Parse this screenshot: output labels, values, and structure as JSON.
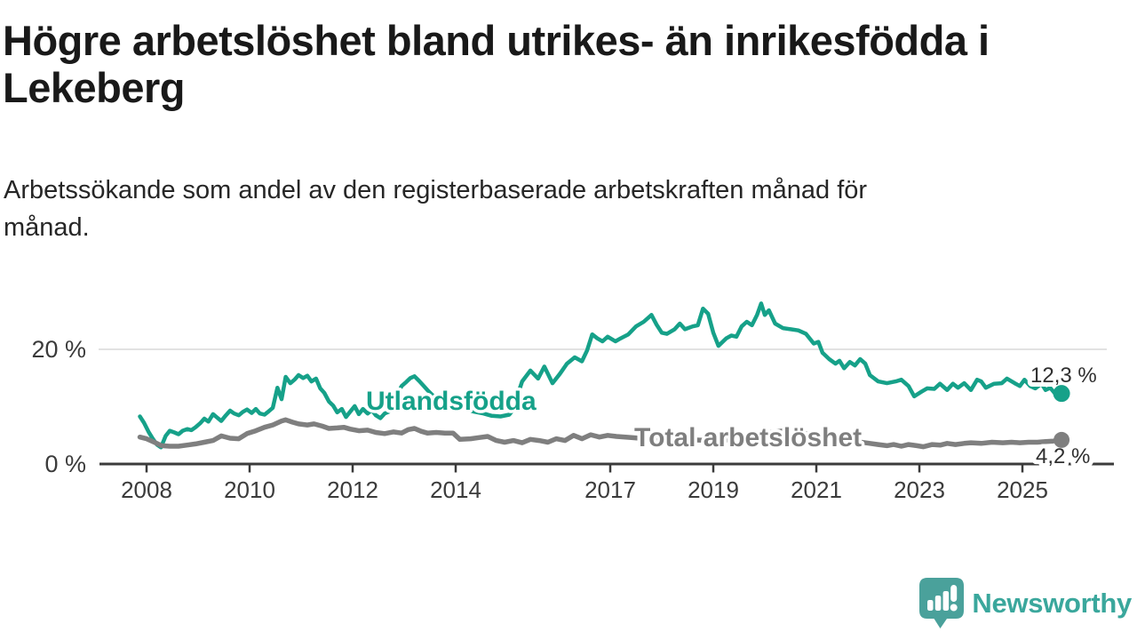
{
  "chart_data": {
    "type": "line",
    "title": "Högre arbetslöshet bland utrikes- än inrikesfödda i Lekeberg",
    "subtitle": "Arbetssökande som andel av den registerbaserade arbetskraften månad för månad.",
    "unit": "%",
    "grid": "horizontal-only",
    "legend_position": "inline-labels-on-lines",
    "x_axis": {
      "range": [
        2007.87,
        2026.6
      ],
      "ticks": [
        {
          "year": 2008,
          "label": "2008"
        },
        {
          "year": 2010,
          "label": "2010"
        },
        {
          "year": 2012,
          "label": "2012"
        },
        {
          "year": 2014,
          "label": "2014"
        },
        {
          "year": 2017,
          "label": "2017"
        },
        {
          "year": 2019,
          "label": "2019"
        },
        {
          "year": 2021,
          "label": "2021"
        },
        {
          "year": 2023,
          "label": "2023"
        },
        {
          "year": 2025,
          "label": "2025"
        }
      ]
    },
    "y_axis": {
      "range": [
        0,
        30
      ],
      "ticks": [
        {
          "value": 0,
          "label": "0 %"
        },
        {
          "value": 20,
          "label": "20 %"
        }
      ],
      "gridline_values": [
        20
      ]
    },
    "series": [
      {
        "name": "Utlandsfödda",
        "color": "#16a189",
        "end_label": "12,3 %",
        "end_value": 12.3,
        "points": [
          [
            2007.87,
            8.3
          ],
          [
            2007.95,
            7.2
          ],
          [
            2008.04,
            5.6
          ],
          [
            2008.12,
            4.4
          ],
          [
            2008.2,
            3.4
          ],
          [
            2008.28,
            2.9
          ],
          [
            2008.37,
            4.9
          ],
          [
            2008.45,
            5.8
          ],
          [
            2008.54,
            5.5
          ],
          [
            2008.62,
            5.2
          ],
          [
            2008.7,
            5.8
          ],
          [
            2008.79,
            6.1
          ],
          [
            2008.87,
            5.9
          ],
          [
            2008.95,
            6.4
          ],
          [
            2009.04,
            7.1
          ],
          [
            2009.12,
            7.9
          ],
          [
            2009.2,
            7.4
          ],
          [
            2009.29,
            8.7
          ],
          [
            2009.37,
            8.1
          ],
          [
            2009.45,
            7.5
          ],
          [
            2009.54,
            8.5
          ],
          [
            2009.62,
            9.3
          ],
          [
            2009.7,
            8.8
          ],
          [
            2009.79,
            8.5
          ],
          [
            2009.87,
            9.1
          ],
          [
            2009.95,
            9.5
          ],
          [
            2010.04,
            8.9
          ],
          [
            2010.12,
            9.6
          ],
          [
            2010.2,
            8.8
          ],
          [
            2010.29,
            8.6
          ],
          [
            2010.37,
            9.2
          ],
          [
            2010.45,
            9.8
          ],
          [
            2010.54,
            13.3
          ],
          [
            2010.62,
            11.3
          ],
          [
            2010.7,
            15.2
          ],
          [
            2010.79,
            14.1
          ],
          [
            2010.87,
            14.7
          ],
          [
            2010.95,
            15.5
          ],
          [
            2011.04,
            15.0
          ],
          [
            2011.12,
            15.4
          ],
          [
            2011.2,
            14.4
          ],
          [
            2011.29,
            14.9
          ],
          [
            2011.37,
            13.2
          ],
          [
            2011.45,
            12.4
          ],
          [
            2011.54,
            10.9
          ],
          [
            2011.62,
            10.2
          ],
          [
            2011.7,
            9.0
          ],
          [
            2011.79,
            9.6
          ],
          [
            2011.87,
            8.2
          ],
          [
            2011.95,
            9.1
          ],
          [
            2012.04,
            10.1
          ],
          [
            2012.12,
            8.7
          ],
          [
            2012.2,
            9.6
          ],
          [
            2012.29,
            8.8
          ],
          [
            2012.37,
            9.4
          ],
          [
            2012.45,
            8.5
          ],
          [
            2012.54,
            8.0
          ],
          [
            2012.62,
            8.8
          ],
          [
            2012.7,
            9.1
          ],
          [
            2012.79,
            10.6
          ],
          [
            2012.87,
            12.1
          ],
          [
            2012.95,
            13.6
          ],
          [
            2013.04,
            14.3
          ],
          [
            2013.12,
            15.0
          ],
          [
            2013.2,
            15.3
          ],
          [
            2013.29,
            14.5
          ],
          [
            2013.37,
            13.7
          ],
          [
            2013.45,
            12.9
          ],
          [
            2013.54,
            12.1
          ],
          [
            2013.62,
            11.5
          ],
          [
            2013.7,
            11.1
          ],
          [
            2013.79,
            10.7
          ],
          [
            2013.87,
            10.4
          ],
          [
            2013.95,
            10.2
          ],
          [
            2014.04,
            10.0
          ],
          [
            2014.2,
            9.5
          ],
          [
            2014.37,
            9.1
          ],
          [
            2014.54,
            8.8
          ],
          [
            2014.7,
            8.4
          ],
          [
            2014.87,
            8.3
          ],
          [
            2015.04,
            8.6
          ],
          [
            2015.12,
            9.5
          ],
          [
            2015.2,
            12.0
          ],
          [
            2015.29,
            14.4
          ],
          [
            2015.45,
            16.3
          ],
          [
            2015.6,
            14.9
          ],
          [
            2015.72,
            17.0
          ],
          [
            2015.88,
            14.1
          ],
          [
            2016.02,
            15.7
          ],
          [
            2016.16,
            17.5
          ],
          [
            2016.31,
            18.6
          ],
          [
            2016.45,
            17.9
          ],
          [
            2016.55,
            19.8
          ],
          [
            2016.65,
            22.6
          ],
          [
            2016.75,
            21.9
          ],
          [
            2016.85,
            21.4
          ],
          [
            2016.95,
            22.2
          ],
          [
            2017.1,
            21.4
          ],
          [
            2017.2,
            21.9
          ],
          [
            2017.35,
            22.6
          ],
          [
            2017.5,
            24.0
          ],
          [
            2017.65,
            24.8
          ],
          [
            2017.8,
            26.0
          ],
          [
            2017.9,
            24.3
          ],
          [
            2018.0,
            22.9
          ],
          [
            2018.1,
            22.7
          ],
          [
            2018.25,
            23.5
          ],
          [
            2018.35,
            24.5
          ],
          [
            2018.45,
            23.5
          ],
          [
            2018.6,
            24.0
          ],
          [
            2018.7,
            24.2
          ],
          [
            2018.8,
            27.1
          ],
          [
            2018.9,
            26.2
          ],
          [
            2019.0,
            22.9
          ],
          [
            2019.1,
            20.6
          ],
          [
            2019.25,
            21.9
          ],
          [
            2019.35,
            22.4
          ],
          [
            2019.45,
            22.2
          ],
          [
            2019.55,
            24.0
          ],
          [
            2019.65,
            24.8
          ],
          [
            2019.75,
            24.2
          ],
          [
            2019.85,
            26.0
          ],
          [
            2019.93,
            28.0
          ],
          [
            2020.0,
            26.0
          ],
          [
            2020.08,
            26.8
          ],
          [
            2020.2,
            24.5
          ],
          [
            2020.35,
            23.7
          ],
          [
            2020.5,
            23.5
          ],
          [
            2020.65,
            23.3
          ],
          [
            2020.8,
            22.7
          ],
          [
            2020.95,
            21.0
          ],
          [
            2021.04,
            21.3
          ],
          [
            2021.12,
            19.4
          ],
          [
            2021.25,
            18.3
          ],
          [
            2021.37,
            17.5
          ],
          [
            2021.45,
            18.0
          ],
          [
            2021.54,
            16.7
          ],
          [
            2021.65,
            17.8
          ],
          [
            2021.75,
            17.2
          ],
          [
            2021.85,
            18.3
          ],
          [
            2021.95,
            17.5
          ],
          [
            2022.04,
            15.5
          ],
          [
            2022.2,
            14.4
          ],
          [
            2022.37,
            14.1
          ],
          [
            2022.54,
            14.4
          ],
          [
            2022.65,
            14.7
          ],
          [
            2022.79,
            13.6
          ],
          [
            2022.9,
            11.8
          ],
          [
            2023.04,
            12.6
          ],
          [
            2023.15,
            13.2
          ],
          [
            2023.29,
            13.1
          ],
          [
            2023.4,
            14.0
          ],
          [
            2023.54,
            12.9
          ],
          [
            2023.65,
            14.0
          ],
          [
            2023.75,
            13.3
          ],
          [
            2023.87,
            14.1
          ],
          [
            2024.0,
            12.9
          ],
          [
            2024.12,
            14.7
          ],
          [
            2024.2,
            14.4
          ],
          [
            2024.29,
            13.3
          ],
          [
            2024.45,
            14.0
          ],
          [
            2024.6,
            14.1
          ],
          [
            2024.7,
            14.9
          ],
          [
            2024.85,
            14.1
          ],
          [
            2024.95,
            13.6
          ],
          [
            2025.04,
            14.7
          ],
          [
            2025.15,
            13.6
          ],
          [
            2025.25,
            13.2
          ],
          [
            2025.37,
            14.0
          ],
          [
            2025.45,
            12.9
          ],
          [
            2025.54,
            13.3
          ],
          [
            2025.65,
            12.1
          ],
          [
            2025.76,
            12.3
          ]
        ]
      },
      {
        "name": "Total arbetslöshet",
        "color": "#7f7f7f",
        "end_label": "4,2 %",
        "end_value": 4.2,
        "points": [
          [
            2007.87,
            4.7
          ],
          [
            2008.0,
            4.4
          ],
          [
            2008.15,
            3.8
          ],
          [
            2008.29,
            3.2
          ],
          [
            2008.45,
            3.1
          ],
          [
            2008.62,
            3.1
          ],
          [
            2008.79,
            3.3
          ],
          [
            2008.95,
            3.5
          ],
          [
            2009.12,
            3.8
          ],
          [
            2009.29,
            4.1
          ],
          [
            2009.45,
            4.9
          ],
          [
            2009.62,
            4.5
          ],
          [
            2009.79,
            4.4
          ],
          [
            2009.95,
            5.3
          ],
          [
            2010.12,
            5.8
          ],
          [
            2010.29,
            6.4
          ],
          [
            2010.45,
            6.8
          ],
          [
            2010.62,
            7.5
          ],
          [
            2010.7,
            7.7
          ],
          [
            2010.83,
            7.3
          ],
          [
            2010.95,
            7.0
          ],
          [
            2011.12,
            6.8
          ],
          [
            2011.25,
            7.0
          ],
          [
            2011.41,
            6.6
          ],
          [
            2011.54,
            6.2
          ],
          [
            2011.7,
            6.3
          ],
          [
            2011.83,
            6.4
          ],
          [
            2011.95,
            6.1
          ],
          [
            2012.12,
            5.8
          ],
          [
            2012.29,
            5.9
          ],
          [
            2012.45,
            5.5
          ],
          [
            2012.62,
            5.3
          ],
          [
            2012.79,
            5.6
          ],
          [
            2012.95,
            5.4
          ],
          [
            2013.08,
            6.0
          ],
          [
            2013.2,
            6.2
          ],
          [
            2013.33,
            5.7
          ],
          [
            2013.45,
            5.4
          ],
          [
            2013.62,
            5.5
          ],
          [
            2013.79,
            5.4
          ],
          [
            2013.95,
            5.4
          ],
          [
            2014.08,
            4.3
          ],
          [
            2014.29,
            4.4
          ],
          [
            2014.45,
            4.6
          ],
          [
            2014.62,
            4.8
          ],
          [
            2014.79,
            4.1
          ],
          [
            2014.95,
            3.8
          ],
          [
            2015.12,
            4.1
          ],
          [
            2015.29,
            3.7
          ],
          [
            2015.45,
            4.3
          ],
          [
            2015.62,
            4.1
          ],
          [
            2015.79,
            3.8
          ],
          [
            2015.95,
            4.4
          ],
          [
            2016.12,
            4.1
          ],
          [
            2016.29,
            5.0
          ],
          [
            2016.45,
            4.4
          ],
          [
            2016.62,
            5.1
          ],
          [
            2016.79,
            4.7
          ],
          [
            2016.95,
            5.0
          ],
          [
            2017.12,
            4.8
          ],
          [
            2017.41,
            4.6
          ],
          [
            2017.7,
            4.4
          ],
          [
            2018.0,
            4.3
          ],
          [
            2018.29,
            4.4
          ],
          [
            2018.62,
            4.2
          ],
          [
            2018.95,
            4.1
          ],
          [
            2019.29,
            4.2
          ],
          [
            2019.62,
            4.4
          ],
          [
            2019.91,
            4.8
          ],
          [
            2020.12,
            5.5
          ],
          [
            2020.37,
            5.8
          ],
          [
            2020.62,
            5.5
          ],
          [
            2020.91,
            5.1
          ],
          [
            2021.2,
            4.7
          ],
          [
            2021.5,
            4.3
          ],
          [
            2021.79,
            3.9
          ],
          [
            2022.04,
            3.6
          ],
          [
            2022.2,
            3.4
          ],
          [
            2022.37,
            3.2
          ],
          [
            2022.5,
            3.4
          ],
          [
            2022.65,
            3.1
          ],
          [
            2022.79,
            3.4
          ],
          [
            2022.95,
            3.2
          ],
          [
            2023.08,
            3.0
          ],
          [
            2023.25,
            3.4
          ],
          [
            2023.41,
            3.3
          ],
          [
            2023.54,
            3.6
          ],
          [
            2023.7,
            3.4
          ],
          [
            2023.87,
            3.6
          ],
          [
            2024.0,
            3.7
          ],
          [
            2024.2,
            3.6
          ],
          [
            2024.41,
            3.8
          ],
          [
            2024.62,
            3.7
          ],
          [
            2024.79,
            3.8
          ],
          [
            2024.95,
            3.7
          ],
          [
            2025.12,
            3.8
          ],
          [
            2025.29,
            3.8
          ],
          [
            2025.45,
            3.9
          ],
          [
            2025.6,
            4.0
          ],
          [
            2025.76,
            4.2
          ]
        ]
      }
    ]
  },
  "footer": {
    "brand": "Newsworthy",
    "brand_color": "#3aa79c",
    "icon_color": "#4aa19b",
    "icon_name": "newsworthy-chart-bubble"
  }
}
